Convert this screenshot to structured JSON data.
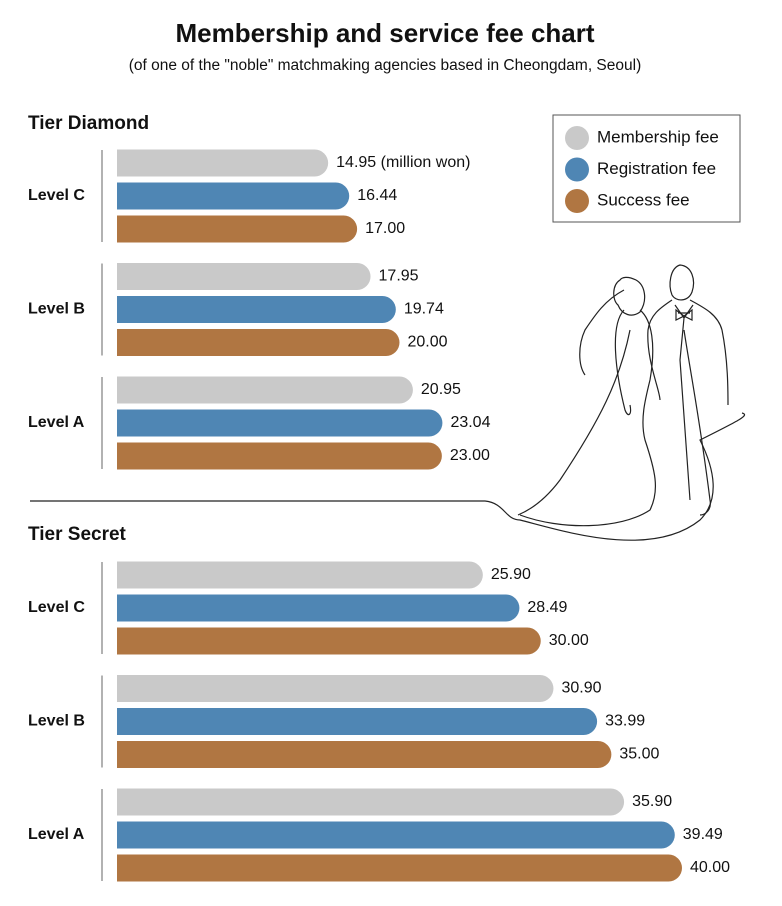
{
  "header": {
    "title": "Membership and service fee chart",
    "subtitle": "(of one of the \"noble\" matchmaking agencies based in Cheongdam, Seoul)"
  },
  "chart_data": [
    {
      "type": "bar",
      "orientation": "horizontal",
      "title": "Tier Diamond",
      "categories": [
        "Level C",
        "Level B",
        "Level A"
      ],
      "xlim": [
        0,
        40
      ],
      "series": [
        {
          "name": "Membership fee",
          "color": "#c9c9c9",
          "values": [
            14.95,
            17.95,
            20.95
          ],
          "value_labels": [
            "14.95 (million won)",
            "17.95",
            "20.95"
          ]
        },
        {
          "name": "Registration fee",
          "color": "#4f86b4",
          "values": [
            16.44,
            19.74,
            23.04
          ],
          "value_labels": [
            "16.44",
            "19.74",
            "23.04"
          ]
        },
        {
          "name": "Success fee",
          "color": "#b07642",
          "values": [
            17,
            20,
            23
          ],
          "value_labels": [
            "17.00",
            "20.00",
            "23.00"
          ]
        }
      ]
    },
    {
      "type": "bar",
      "orientation": "horizontal",
      "title": "Tier Secret",
      "categories": [
        "Level C",
        "Level B",
        "Level A"
      ],
      "xlim": [
        0,
        40
      ],
      "series": [
        {
          "color": "#c9c9c9",
          "values": [
            25.9,
            30.9,
            35.9
          ],
          "value_labels": [
            "25.90",
            "30.90",
            "35.90"
          ]
        },
        {
          "color": "#4f86b4",
          "values": [
            28.49,
            33.99,
            39.49
          ],
          "value_labels": [
            "28.49",
            "33.99",
            "39.49"
          ]
        },
        {
          "color": "#b07642",
          "values": [
            30,
            35,
            40
          ],
          "value_labels": [
            "30.00",
            "35.00",
            "40.00"
          ]
        }
      ]
    }
  ]
}
